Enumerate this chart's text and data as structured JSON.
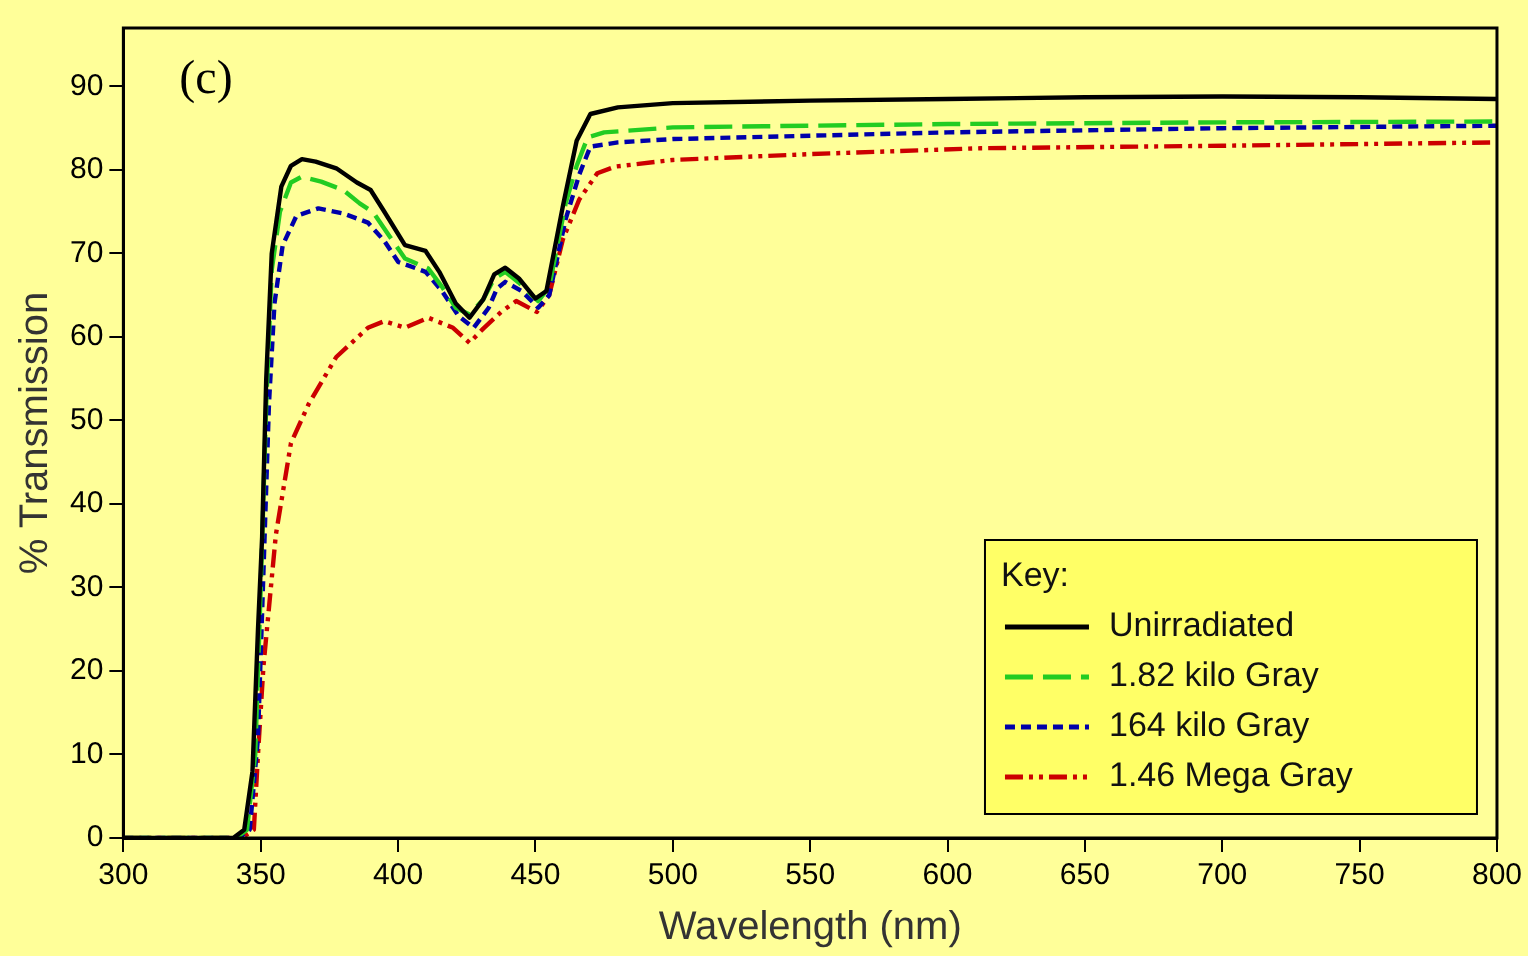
{
  "chart_data": {
    "type": "line",
    "xlabel": "Wavelength (nm)",
    "ylabel": "% Transmission",
    "legend_title": "Key:",
    "legend": "bottom right",
    "grid": false,
    "marker": "none",
    "annotations": [
      "(c)"
    ],
    "xlim": [
      300,
      800
    ],
    "xticks": [
      300,
      350,
      400,
      450,
      500,
      550,
      600,
      650,
      700,
      750,
      800
    ],
    "ylim": [
      0,
      97
    ],
    "yticks": [
      0,
      10,
      20,
      30,
      40,
      50,
      60,
      70,
      80,
      90
    ],
    "series": [
      {
        "name": "Unirradiated",
        "color": "#000000",
        "line_style": "solid",
        "x": [
          300,
          340,
          344,
          347,
          349,
          350.5,
          352,
          354,
          357.5,
          361,
          365,
          370,
          377.5,
          385,
          390,
          395,
          402.5,
          410,
          415,
          421,
          426,
          431,
          435,
          439,
          444,
          450,
          454,
          460,
          465,
          470,
          480,
          500,
          550,
          600,
          650,
          700,
          750,
          800
        ],
        "values": [
          0,
          0,
          1,
          8,
          25,
          36,
          55,
          70,
          78,
          80.5,
          81.3,
          81,
          80.2,
          78.5,
          77.6,
          75,
          71,
          70.3,
          67.8,
          64,
          62.3,
          64.5,
          67.5,
          68.3,
          67,
          64.6,
          65.5,
          75.7,
          83.5,
          86.7,
          87.5,
          88,
          88.3,
          88.5,
          88.7,
          88.8,
          88.7,
          88.5
        ]
      },
      {
        "name": "1.82 kilo Gray",
        "color": "#22cc22",
        "line_style": "dashed",
        "x": [
          300,
          341,
          345,
          348,
          350,
          352,
          354,
          357,
          361,
          365,
          372,
          380,
          386,
          391,
          397,
          402.5,
          411,
          416,
          421,
          426,
          431,
          435,
          439,
          444,
          451,
          455,
          461,
          465,
          469,
          475,
          500,
          600,
          700,
          800
        ],
        "values": [
          0,
          0,
          1,
          10,
          30,
          52,
          68,
          75,
          78.5,
          79.2,
          78.6,
          77.6,
          76,
          74.9,
          72,
          69.4,
          68.2,
          66,
          63.5,
          62.7,
          64.5,
          67,
          67.8,
          66.5,
          64.3,
          66,
          76,
          80.5,
          83.9,
          84.5,
          85.1,
          85.5,
          85.7,
          85.8
        ]
      },
      {
        "name": "164 kilo Gray",
        "color": "#0000aa",
        "line_style": "dotted",
        "x": [
          300,
          342,
          346,
          349,
          351,
          353,
          355,
          358,
          363,
          371,
          380,
          389,
          395,
          400,
          410,
          416,
          422,
          427.5,
          433,
          436,
          439,
          445,
          451,
          455,
          461,
          466,
          470,
          480,
          500,
          600,
          700,
          800
        ],
        "values": [
          0,
          0,
          1,
          12,
          32,
          52,
          64,
          71,
          74.5,
          75.4,
          74.8,
          73.7,
          71.5,
          69,
          67.8,
          65.5,
          62.5,
          61.1,
          63.5,
          65.8,
          66.6,
          65.5,
          63.5,
          65,
          74.1,
          79.5,
          82.8,
          83.3,
          83.7,
          84.5,
          85,
          85.3
        ]
      },
      {
        "name": "1.46 Mega Gray",
        "color": "#cc0000",
        "line_style": "dashdot",
        "x": [
          300,
          343,
          347.5,
          349,
          351,
          355.5,
          361,
          367.5,
          377.5,
          389,
          395,
          402.5,
          411,
          420,
          426,
          431,
          437.5,
          443,
          450.5,
          455,
          460,
          466,
          472.5,
          479,
          500,
          550,
          612,
          700,
          800
        ],
        "values": [
          0,
          0,
          1,
          10,
          20.6,
          36.3,
          47.3,
          52,
          57.6,
          61.1,
          61.9,
          61.1,
          62.3,
          61.1,
          59.3,
          61,
          63,
          64.3,
          63,
          65,
          71.7,
          76.5,
          79.6,
          80.4,
          81.2,
          81.9,
          82.6,
          82.9,
          83.3
        ]
      }
    ]
  }
}
